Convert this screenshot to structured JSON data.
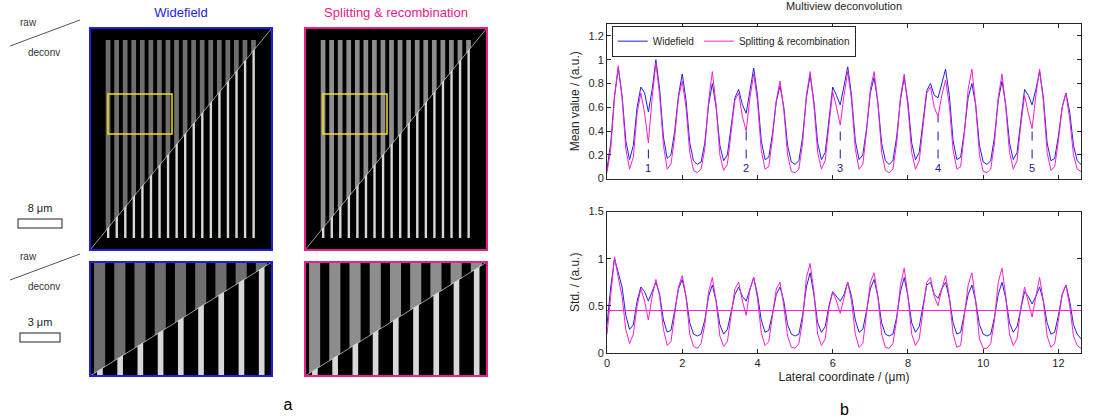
{
  "panel_a": {
    "label": "a",
    "columns": [
      {
        "title": "Widefield",
        "color": "#1e1ee0"
      },
      {
        "title": "Splitting & recombination",
        "color": "#e8208c"
      }
    ],
    "row_label": {
      "top": "raw",
      "bottom": "deconv"
    },
    "scale_bars": [
      "8 μm",
      "3 μm"
    ]
  },
  "panel_b_label": "b",
  "chart_data": [
    {
      "type": "line",
      "title": "Multiview deconvolution",
      "y_label": "Mean value / (a.u.)",
      "xlim": [
        0,
        12.6
      ],
      "xticks": [
        0,
        2,
        4,
        6,
        8,
        10,
        12
      ],
      "ylim": [
        0,
        1.3
      ],
      "yticks": [
        0,
        0.2,
        0.4,
        0.6,
        0.8,
        1,
        1.2
      ],
      "tick_labels": "y",
      "grid": false,
      "legend": "top left",
      "x": [
        0,
        0.1,
        0.2,
        0.3,
        0.4,
        0.5,
        0.6,
        0.7,
        0.8,
        0.9,
        1,
        1.1,
        1.2,
        1.3,
        1.4,
        1.5,
        1.6,
        1.7,
        1.8,
        1.9,
        2,
        2.1,
        2.2,
        2.3,
        2.4,
        2.5,
        2.6,
        2.7,
        2.8,
        2.9,
        3,
        3.1,
        3.2,
        3.3,
        3.4,
        3.5,
        3.6,
        3.7,
        3.8,
        3.9,
        4,
        4.1,
        4.2,
        4.3,
        4.4,
        4.5,
        4.6,
        4.7,
        4.8,
        4.9,
        5,
        5.1,
        5.2,
        5.3,
        5.4,
        5.5,
        5.6,
        5.7,
        5.8,
        5.9,
        6,
        6.1,
        6.2,
        6.3,
        6.4,
        6.5,
        6.6,
        6.7,
        6.8,
        6.9,
        7,
        7.1,
        7.2,
        7.3,
        7.4,
        7.5,
        7.6,
        7.7,
        7.8,
        7.9,
        8,
        8.1,
        8.2,
        8.3,
        8.4,
        8.5,
        8.6,
        8.7,
        8.8,
        8.9,
        9,
        9.1,
        9.2,
        9.3,
        9.4,
        9.5,
        9.6,
        9.7,
        9.8,
        9.9,
        10,
        10.1,
        10.2,
        10.3,
        10.4,
        10.5,
        10.6,
        10.7,
        10.8,
        10.9,
        11,
        11.1,
        11.2,
        11.3,
        11.4,
        11.5,
        11.6,
        11.7,
        11.8,
        11.9,
        12,
        12.1,
        12.2,
        12.3,
        12.4,
        12.5,
        12.6
      ],
      "series": [
        {
          "name": "Widefield",
          "color": "#2020e0",
          "values": [
            0.08,
            0.3,
            0.7,
            0.93,
            0.7,
            0.32,
            0.16,
            0.28,
            0.6,
            0.77,
            0.72,
            0.56,
            0.75,
            1.0,
            0.75,
            0.35,
            0.17,
            0.2,
            0.4,
            0.7,
            0.88,
            0.66,
            0.3,
            0.15,
            0.12,
            0.14,
            0.3,
            0.62,
            0.8,
            0.6,
            0.28,
            0.15,
            0.2,
            0.45,
            0.68,
            0.75,
            0.62,
            0.55,
            0.75,
            0.93,
            0.7,
            0.32,
            0.16,
            0.18,
            0.38,
            0.65,
            0.78,
            0.6,
            0.28,
            0.14,
            0.12,
            0.15,
            0.35,
            0.68,
            0.87,
            0.65,
            0.3,
            0.16,
            0.22,
            0.5,
            0.77,
            0.7,
            0.62,
            0.78,
            0.94,
            0.7,
            0.32,
            0.16,
            0.2,
            0.42,
            0.72,
            0.85,
            0.64,
            0.3,
            0.15,
            0.12,
            0.15,
            0.35,
            0.66,
            0.85,
            0.64,
            0.3,
            0.16,
            0.22,
            0.5,
            0.74,
            0.8,
            0.7,
            0.68,
            0.8,
            0.92,
            0.7,
            0.32,
            0.16,
            0.18,
            0.4,
            0.68,
            0.8,
            0.62,
            0.28,
            0.14,
            0.12,
            0.15,
            0.35,
            0.66,
            0.82,
            0.62,
            0.3,
            0.16,
            0.22,
            0.5,
            0.75,
            0.7,
            0.62,
            0.75,
            0.9,
            0.68,
            0.3,
            0.15,
            0.17,
            0.36,
            0.6,
            0.72,
            0.56,
            0.28,
            0.15,
            0.12
          ]
        },
        {
          "name": "Splitting & recombination",
          "color": "#f020d0",
          "values": [
            0.05,
            0.25,
            0.68,
            0.95,
            0.68,
            0.25,
            0.08,
            0.18,
            0.55,
            0.72,
            0.55,
            0.3,
            0.68,
            0.97,
            0.7,
            0.28,
            0.08,
            0.12,
            0.35,
            0.68,
            0.82,
            0.6,
            0.22,
            0.07,
            0.05,
            0.08,
            0.25,
            0.65,
            0.9,
            0.62,
            0.2,
            0.07,
            0.12,
            0.4,
            0.66,
            0.72,
            0.52,
            0.4,
            0.68,
            0.88,
            0.65,
            0.24,
            0.08,
            0.1,
            0.34,
            0.66,
            0.82,
            0.58,
            0.2,
            0.06,
            0.05,
            0.08,
            0.3,
            0.7,
            0.9,
            0.62,
            0.22,
            0.08,
            0.15,
            0.45,
            0.73,
            0.6,
            0.45,
            0.7,
            0.9,
            0.66,
            0.25,
            0.08,
            0.12,
            0.4,
            0.75,
            0.9,
            0.64,
            0.22,
            0.07,
            0.05,
            0.08,
            0.3,
            0.68,
            0.88,
            0.6,
            0.22,
            0.08,
            0.15,
            0.45,
            0.72,
            0.77,
            0.6,
            0.52,
            0.7,
            0.83,
            0.62,
            0.24,
            0.08,
            0.1,
            0.38,
            0.75,
            0.92,
            0.62,
            0.2,
            0.06,
            0.05,
            0.08,
            0.3,
            0.68,
            0.88,
            0.6,
            0.22,
            0.08,
            0.15,
            0.45,
            0.7,
            0.55,
            0.42,
            0.7,
            0.92,
            0.65,
            0.22,
            0.07,
            0.1,
            0.32,
            0.6,
            0.72,
            0.5,
            0.2,
            0.08,
            0.06
          ]
        }
      ],
      "markers": [
        {
          "text": "1",
          "x": 1.1,
          "y": 0.3
        },
        {
          "text": "2",
          "x": 3.7,
          "y": 0.4
        },
        {
          "text": "3",
          "x": 6.2,
          "y": 0.45
        },
        {
          "text": "4",
          "x": 8.8,
          "y": 0.52
        },
        {
          "text": "5",
          "x": 11.3,
          "y": 0.42
        }
      ],
      "marker_color": "#1a1a90"
    },
    {
      "type": "line",
      "x_label": "Lateral coordinate / (μm)",
      "y_label": "Std. / (a.u.)",
      "xlim": [
        0,
        12.6
      ],
      "xticks": [
        0,
        2,
        4,
        6,
        8,
        10,
        12
      ],
      "ylim": [
        0,
        1.5
      ],
      "yticks": [
        0,
        0.5,
        1,
        1.5
      ],
      "grid": false,
      "x": [
        0,
        0.1,
        0.2,
        0.3,
        0.4,
        0.5,
        0.6,
        0.7,
        0.8,
        0.9,
        1,
        1.1,
        1.2,
        1.3,
        1.4,
        1.5,
        1.6,
        1.7,
        1.8,
        1.9,
        2,
        2.1,
        2.2,
        2.3,
        2.4,
        2.5,
        2.6,
        2.7,
        2.8,
        2.9,
        3,
        3.1,
        3.2,
        3.3,
        3.4,
        3.5,
        3.6,
        3.7,
        3.8,
        3.9,
        4,
        4.1,
        4.2,
        4.3,
        4.4,
        4.5,
        4.6,
        4.7,
        4.8,
        4.9,
        5,
        5.1,
        5.2,
        5.3,
        5.4,
        5.5,
        5.6,
        5.7,
        5.8,
        5.9,
        6,
        6.1,
        6.2,
        6.3,
        6.4,
        6.5,
        6.6,
        6.7,
        6.8,
        6.9,
        7,
        7.1,
        7.2,
        7.3,
        7.4,
        7.5,
        7.6,
        7.7,
        7.8,
        7.9,
        8,
        8.1,
        8.2,
        8.3,
        8.4,
        8.5,
        8.6,
        8.7,
        8.8,
        8.9,
        9,
        9.1,
        9.2,
        9.3,
        9.4,
        9.5,
        9.6,
        9.7,
        9.8,
        9.9,
        10,
        10.1,
        10.2,
        10.3,
        10.4,
        10.5,
        10.6,
        10.7,
        10.8,
        10.9,
        11,
        11.1,
        11.2,
        11.3,
        11.4,
        11.5,
        11.6,
        11.7,
        11.8,
        11.9,
        12,
        12.1,
        12.2,
        12.3,
        12.4,
        12.5,
        12.6
      ],
      "series": [
        {
          "name": "Widefield",
          "color": "#2020e0",
          "values": [
            0.3,
            0.7,
            1.0,
            0.85,
            0.7,
            0.4,
            0.25,
            0.3,
            0.55,
            0.7,
            0.65,
            0.55,
            0.65,
            0.75,
            0.62,
            0.35,
            0.22,
            0.24,
            0.45,
            0.68,
            0.78,
            0.6,
            0.32,
            0.2,
            0.18,
            0.2,
            0.35,
            0.6,
            0.72,
            0.55,
            0.3,
            0.2,
            0.25,
            0.45,
            0.62,
            0.7,
            0.6,
            0.55,
            0.68,
            0.8,
            0.62,
            0.35,
            0.22,
            0.24,
            0.42,
            0.62,
            0.7,
            0.55,
            0.3,
            0.2,
            0.18,
            0.2,
            0.4,
            0.7,
            0.85,
            0.62,
            0.32,
            0.22,
            0.28,
            0.5,
            0.65,
            0.6,
            0.55,
            0.62,
            0.75,
            0.6,
            0.35,
            0.22,
            0.25,
            0.45,
            0.68,
            0.78,
            0.6,
            0.32,
            0.2,
            0.18,
            0.2,
            0.38,
            0.65,
            0.8,
            0.6,
            0.32,
            0.22,
            0.28,
            0.5,
            0.72,
            0.75,
            0.62,
            0.58,
            0.68,
            0.75,
            0.58,
            0.32,
            0.2,
            0.22,
            0.42,
            0.62,
            0.72,
            0.55,
            0.3,
            0.2,
            0.18,
            0.2,
            0.38,
            0.62,
            0.75,
            0.58,
            0.32,
            0.22,
            0.28,
            0.48,
            0.65,
            0.6,
            0.52,
            0.6,
            0.7,
            0.55,
            0.32,
            0.2,
            0.22,
            0.4,
            0.62,
            0.72,
            0.55,
            0.3,
            0.2,
            0.15
          ]
        },
        {
          "name": "Splitting & recombination",
          "color": "#f020d0",
          "values": [
            0.2,
            0.6,
            1.02,
            0.8,
            0.6,
            0.25,
            0.1,
            0.2,
            0.5,
            0.68,
            0.55,
            0.35,
            0.6,
            0.78,
            0.6,
            0.25,
            0.08,
            0.12,
            0.4,
            0.7,
            0.82,
            0.6,
            0.2,
            0.07,
            0.05,
            0.1,
            0.3,
            0.65,
            0.8,
            0.55,
            0.18,
            0.07,
            0.12,
            0.42,
            0.68,
            0.75,
            0.55,
            0.4,
            0.68,
            0.8,
            0.58,
            0.22,
            0.08,
            0.12,
            0.4,
            0.68,
            0.75,
            0.5,
            0.18,
            0.06,
            0.05,
            0.1,
            0.35,
            0.8,
            0.95,
            0.65,
            0.2,
            0.08,
            0.15,
            0.48,
            0.65,
            0.55,
            0.42,
            0.6,
            0.75,
            0.55,
            0.2,
            0.06,
            0.1,
            0.42,
            0.75,
            0.85,
            0.6,
            0.2,
            0.06,
            0.05,
            0.1,
            0.35,
            0.72,
            0.9,
            0.6,
            0.2,
            0.08,
            0.15,
            0.48,
            0.75,
            0.8,
            0.6,
            0.5,
            0.68,
            0.82,
            0.6,
            0.2,
            0.06,
            0.08,
            0.38,
            0.72,
            0.85,
            0.55,
            0.15,
            0.05,
            0.05,
            0.1,
            0.35,
            0.75,
            0.9,
            0.6,
            0.2,
            0.08,
            0.15,
            0.48,
            0.7,
            0.55,
            0.38,
            0.6,
            0.8,
            0.55,
            0.18,
            0.06,
            0.1,
            0.35,
            0.62,
            0.72,
            0.5,
            0.18,
            0.08,
            0.05
          ]
        }
      ],
      "hline": {
        "value": 0.45,
        "color": "#f020d0"
      }
    }
  ]
}
